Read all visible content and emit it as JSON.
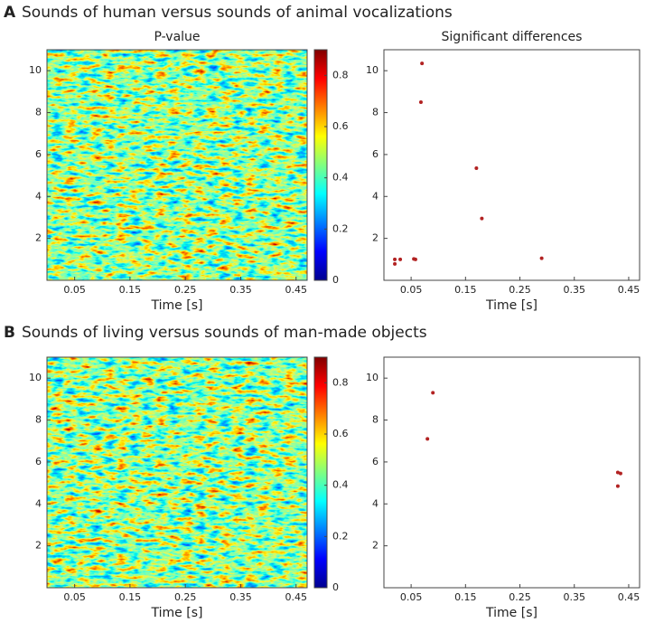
{
  "panels": [
    {
      "label": "A",
      "title": "Sounds of human versus sounds of animal vocalizations"
    },
    {
      "label": "B",
      "title": "Sounds of living versus sounds of man-made objects"
    }
  ],
  "chart_data": [
    {
      "type": "heatmap",
      "title": "P-value",
      "xlabel": "Time [s]",
      "xlim": [
        0,
        0.47
      ],
      "ylim": [
        0,
        11
      ],
      "xticks": [
        0.05,
        0.15,
        0.25,
        0.35,
        0.45
      ],
      "yticks": [
        2,
        4,
        6,
        8,
        10
      ],
      "clim": [
        0,
        0.9
      ],
      "cticks": [
        0,
        0.2,
        0.4,
        0.6,
        0.8
      ]
    },
    {
      "type": "scatter",
      "title": "Significant differences",
      "xlabel": "Time [s]",
      "xlim": [
        0,
        0.47
      ],
      "ylim": [
        0,
        11
      ],
      "xticks": [
        0.05,
        0.15,
        0.25,
        0.35,
        0.45
      ],
      "yticks": [
        2,
        4,
        6,
        8,
        10
      ],
      "color": "#b22222",
      "x": [
        0.02,
        0.03,
        0.055,
        0.058,
        0.02,
        0.18,
        0.07,
        0.068,
        0.17,
        0.29
      ],
      "y": [
        1.0,
        1.0,
        1.02,
        1.0,
        0.78,
        2.95,
        10.35,
        8.5,
        5.35,
        1.05
      ]
    },
    {
      "type": "heatmap",
      "xlabel": "Time [s]",
      "xlim": [
        0,
        0.47
      ],
      "ylim": [
        0,
        11
      ],
      "xticks": [
        0.05,
        0.15,
        0.25,
        0.35,
        0.45
      ],
      "yticks": [
        2,
        4,
        6,
        8,
        10
      ],
      "clim": [
        0,
        0.9
      ],
      "cticks": [
        0,
        0.2,
        0.4,
        0.6,
        0.8
      ]
    },
    {
      "type": "scatter",
      "xlabel": "Time [s]",
      "xlim": [
        0,
        0.47
      ],
      "ylim": [
        0,
        11
      ],
      "xticks": [
        0.05,
        0.15,
        0.25,
        0.35,
        0.45
      ],
      "yticks": [
        2,
        4,
        6,
        8,
        10
      ],
      "color": "#b22222",
      "x": [
        0.08,
        0.43,
        0.435,
        0.43,
        0.09
      ],
      "y": [
        7.1,
        5.5,
        5.45,
        4.85,
        9.3
      ]
    }
  ]
}
